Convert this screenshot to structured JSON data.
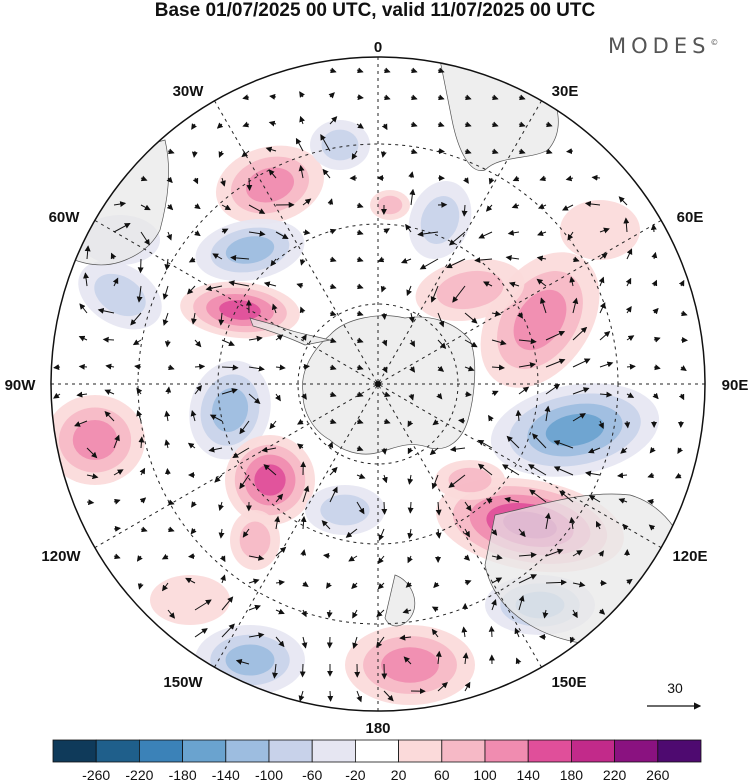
{
  "title": "Base 01/07/2025 00 UTC, valid 11/07/2025 00 UTC",
  "brand": "MODES",
  "brand_mark": "©",
  "longitude_labels": [
    "0",
    "30E",
    "60E",
    "90E",
    "120E",
    "150E",
    "180",
    "150W",
    "120W",
    "90W",
    "60W",
    "30W"
  ],
  "wind_reference": {
    "label": "30"
  },
  "colorbar": {
    "colors": [
      "#0f3a5a",
      "#1f5f8b",
      "#3b82b8",
      "#6aa3cf",
      "#9dbde0",
      "#c8d2ea",
      "#e6e6f2",
      "#ffffff",
      "#fbdada",
      "#f6b9c6",
      "#f08cb0",
      "#e04f9a",
      "#c22a8a",
      "#8a1280",
      "#4e0a70"
    ],
    "tick_labels": [
      "-260",
      "-220",
      "-180",
      "-140",
      "-100",
      "-60",
      "-20",
      "20",
      "60",
      "100",
      "140",
      "180",
      "220",
      "260"
    ]
  },
  "anomaly_colors": {
    "pos": [
      "#fbdada",
      "#f6b9c6",
      "#f08cb0",
      "#e04f9a",
      "#c22a8a"
    ],
    "neg": [
      "#e6e6f2",
      "#c8d2ea",
      "#9dbde0",
      "#6aa3cf",
      "#3b82b8"
    ]
  }
}
